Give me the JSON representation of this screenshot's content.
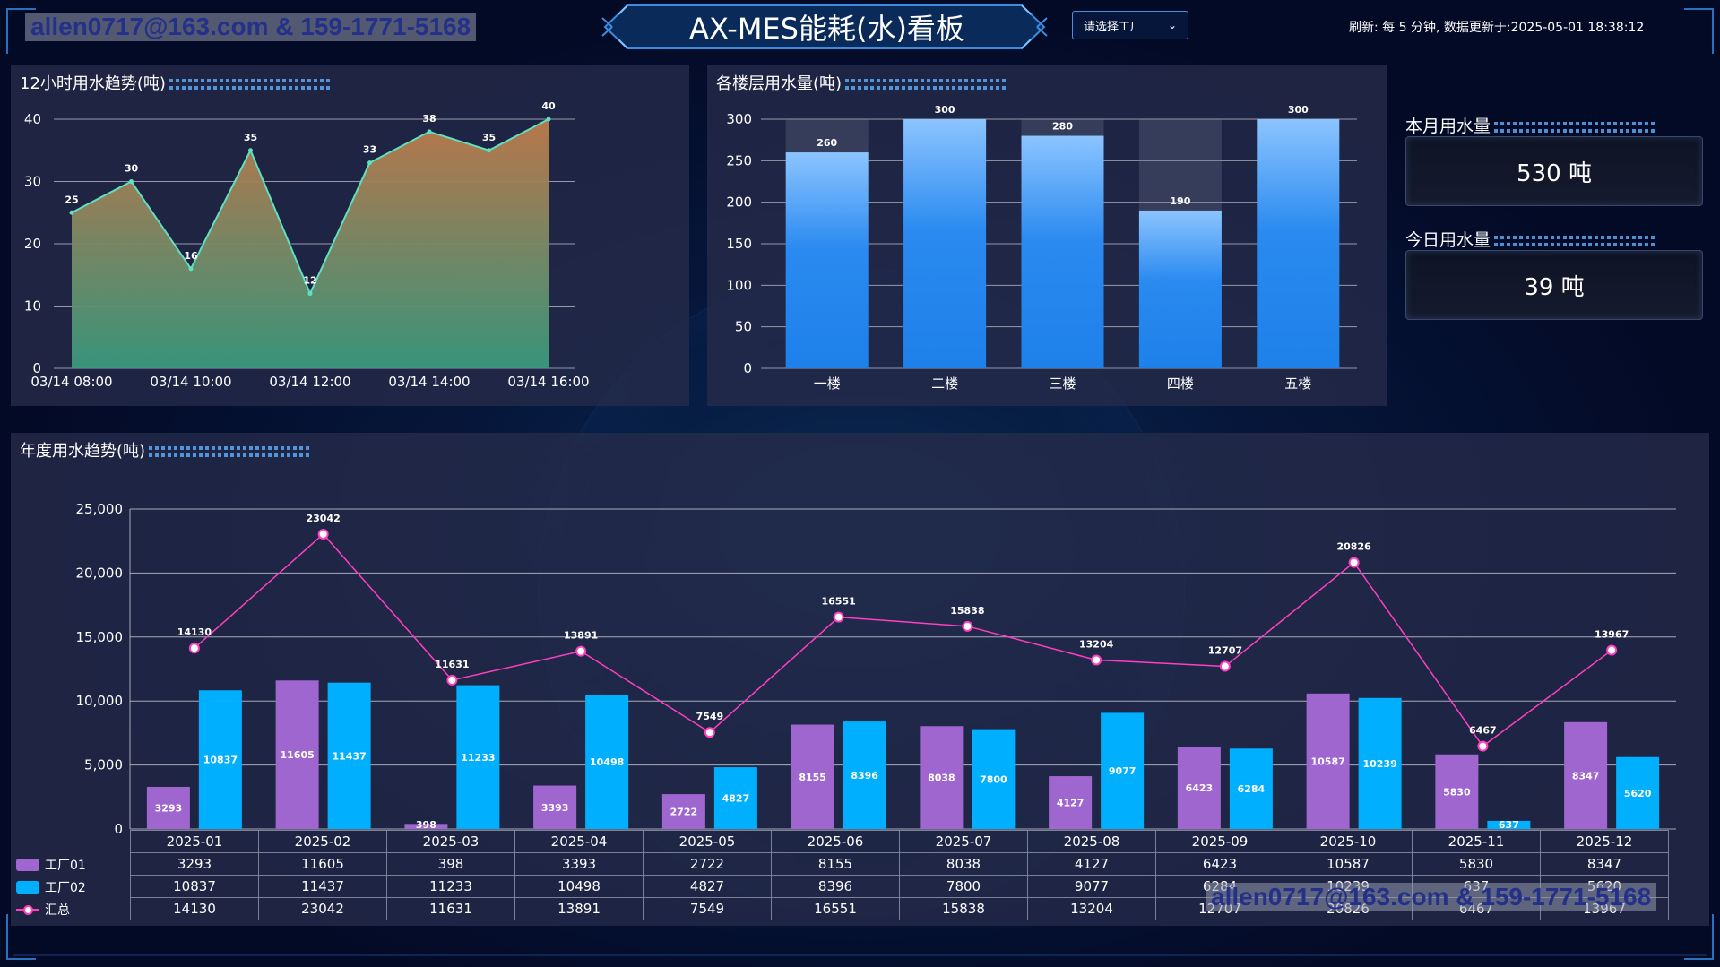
{
  "header": {
    "title": "AX-MES能耗(水)看板",
    "factory_select": "请选择工厂",
    "refresh_text": "刷新: 每 5 分钟, 数据更新于:2025-05-01 18:38:12"
  },
  "watermark": "allen0717@163.com & 159-1771-5168",
  "panels": {
    "hourly_title": "12小时用水趋势(吨)",
    "floor_title": "各楼层用水量(吨)",
    "yearly_title": "年度用水趋势(吨)"
  },
  "kpis": {
    "month_label": "本月用水量",
    "month_value": "530 吨",
    "today_label": "今日用水量",
    "today_value": "39 吨"
  },
  "colors": {
    "area_top": "#c07a4a",
    "area_bottom": "#3a9a7e",
    "bar_blue": "#2a8af0",
    "factory01": "#a066d0",
    "factory02": "#00b0ff",
    "total_line": "#ff3fbf"
  },
  "chart_data": [
    {
      "type": "area",
      "x_ticks": [
        "03/14 08:00",
        "03/14 10:00",
        "03/14 12:00",
        "03/14 14:00",
        "03/14 16:00"
      ],
      "values": [
        25,
        30,
        16,
        35,
        12,
        33,
        38,
        35,
        40
      ],
      "ylim": [
        0,
        40
      ],
      "y_ticks": [
        "0",
        "10",
        "20",
        "30",
        "40"
      ],
      "grid": true
    },
    {
      "type": "bar",
      "categories": [
        "一楼",
        "二楼",
        "三楼",
        "四楼",
        "五楼"
      ],
      "values": [
        260,
        300,
        280,
        190,
        300
      ],
      "ylim": [
        0,
        300
      ],
      "y_ticks": [
        "0",
        "50",
        "100",
        "150",
        "200",
        "250",
        "300"
      ],
      "grid": true
    },
    {
      "type": "bar",
      "categories": [
        "2025-01",
        "2025-02",
        "2025-03",
        "2025-04",
        "2025-05",
        "2025-06",
        "2025-07",
        "2025-08",
        "2025-09",
        "2025-10",
        "2025-11",
        "2025-12"
      ],
      "series": [
        {
          "name": "工厂01",
          "type": "bar",
          "values": [
            3293,
            11605,
            398,
            3393,
            2722,
            8155,
            8038,
            4127,
            6423,
            10587,
            5830,
            8347
          ]
        },
        {
          "name": "工厂02",
          "type": "bar",
          "values": [
            10837,
            11437,
            11233,
            10498,
            4827,
            8396,
            7800,
            9077,
            6284,
            10239,
            637,
            5620
          ]
        },
        {
          "name": "汇总",
          "type": "line",
          "values": [
            14130,
            23042,
            11631,
            13891,
            7549,
            16551,
            15838,
            13204,
            12707,
            20826,
            6467,
            13967
          ]
        }
      ],
      "ylim": [
        0,
        25000
      ],
      "y_ticks": [
        "0",
        "5,000",
        "10,000",
        "15,000",
        "20,000",
        "25,000"
      ],
      "grid": true,
      "legend": "data-table-left"
    }
  ]
}
